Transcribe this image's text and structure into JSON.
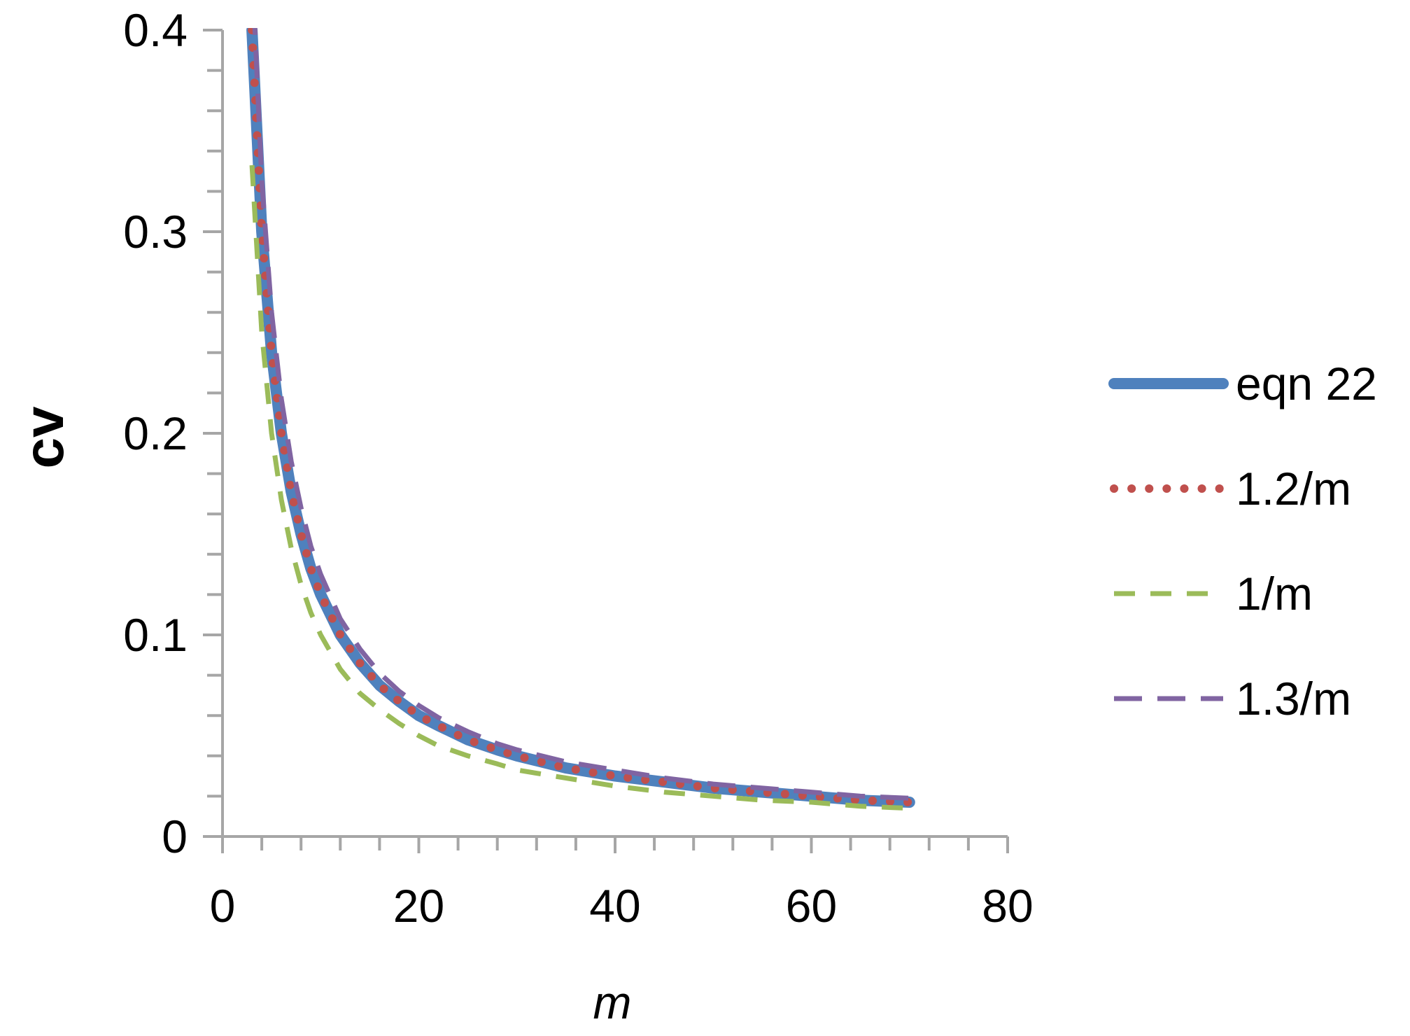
{
  "chart_data": {
    "type": "line",
    "xlabel": "m",
    "ylabel": "cv",
    "xlim": [
      0,
      80
    ],
    "ylim": [
      0,
      0.4
    ],
    "x_ticks": [
      "0",
      "20",
      "40",
      "60",
      "80"
    ],
    "y_ticks": [
      "0",
      "0.1",
      "0.2",
      "0.3",
      "0.4"
    ],
    "grid": false,
    "legend_position": "right",
    "x": [
      3,
      4,
      5,
      6,
      7,
      8,
      9,
      10,
      12,
      14,
      16,
      18,
      20,
      22,
      25,
      28,
      30,
      35,
      40,
      45,
      50,
      55,
      60,
      65,
      70
    ],
    "series": [
      {
        "name": "eqn 22",
        "style": "solid-thick",
        "color": "#4F81BD",
        "values": [
          0.4,
          0.3,
          0.24,
          0.2,
          0.171,
          0.15,
          0.133,
          0.12,
          0.1,
          0.086,
          0.075,
          0.067,
          0.06,
          0.055,
          0.048,
          0.043,
          0.04,
          0.034,
          0.03,
          0.027,
          0.024,
          0.022,
          0.02,
          0.018,
          0.017
        ]
      },
      {
        "name": "1.2/m",
        "style": "dotted",
        "color": "#C0504D",
        "values": [
          0.4,
          0.3,
          0.24,
          0.2,
          0.171,
          0.15,
          0.133,
          0.12,
          0.1,
          0.086,
          0.075,
          0.067,
          0.06,
          0.055,
          0.048,
          0.043,
          0.04,
          0.034,
          0.03,
          0.027,
          0.024,
          0.022,
          0.02,
          0.018,
          0.017
        ]
      },
      {
        "name": "1/m",
        "style": "dashed",
        "color": "#9BBB59",
        "values": [
          0.333,
          0.25,
          0.2,
          0.167,
          0.143,
          0.125,
          0.111,
          0.1,
          0.083,
          0.071,
          0.063,
          0.056,
          0.05,
          0.045,
          0.04,
          0.036,
          0.033,
          0.029,
          0.025,
          0.022,
          0.02,
          0.018,
          0.017,
          0.015,
          0.014
        ]
      },
      {
        "name": "1.3/m",
        "style": "long-dash",
        "color": "#8064A2",
        "values": [
          0.433,
          0.325,
          0.26,
          0.217,
          0.186,
          0.163,
          0.144,
          0.13,
          0.108,
          0.093,
          0.081,
          0.072,
          0.065,
          0.059,
          0.052,
          0.046,
          0.043,
          0.037,
          0.033,
          0.029,
          0.026,
          0.024,
          0.022,
          0.02,
          0.019
        ]
      }
    ]
  }
}
